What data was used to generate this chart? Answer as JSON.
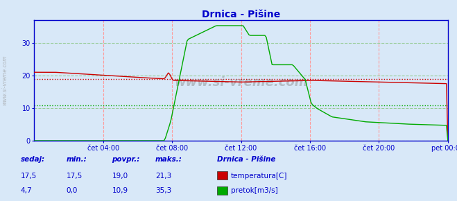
{
  "title": "Drnica - Pišine",
  "title_color": "#0000cc",
  "bg_color": "#d8e8f8",
  "plot_bg_color": "#d8e8f8",
  "grid_color_v": "#ff9999",
  "grid_color_h": "#99cc99",
  "axis_color": "#0000cc",
  "watermark": "www.si-vreme.com",
  "x_labels": [
    "čet 04:00",
    "čet 08:00",
    "čet 12:00",
    "čet 16:00",
    "čet 20:00",
    "pet 00:00"
  ],
  "x_ticks_norm": [
    0.1667,
    0.3333,
    0.5,
    0.6667,
    0.8333,
    1.0
  ],
  "ylim": [
    0,
    37
  ],
  "y_ticks": [
    0,
    10,
    20,
    30
  ],
  "temp_avg_line": 19.0,
  "flow_avg_line": 10.9,
  "temp_color": "#cc0000",
  "flow_color": "#00aa00",
  "temp_avg_color": "#cc0000",
  "flow_avg_color": "#00aa00",
  "legend_title": "Drnica - Pišine",
  "legend_items": [
    "temperatura[C]",
    "pretok[m3/s]"
  ],
  "legend_colors": [
    "#cc0000",
    "#00aa00"
  ],
  "table_headers": [
    "sedaj:",
    "min.:",
    "povpr.:",
    "maks.:"
  ],
  "table_temp": [
    "17,5",
    "17,5",
    "19,0",
    "21,3"
  ],
  "table_flow": [
    "4,7",
    "0,0",
    "10,9",
    "35,3"
  ],
  "table_color": "#0000cc",
  "spine_color": "#0000cc"
}
